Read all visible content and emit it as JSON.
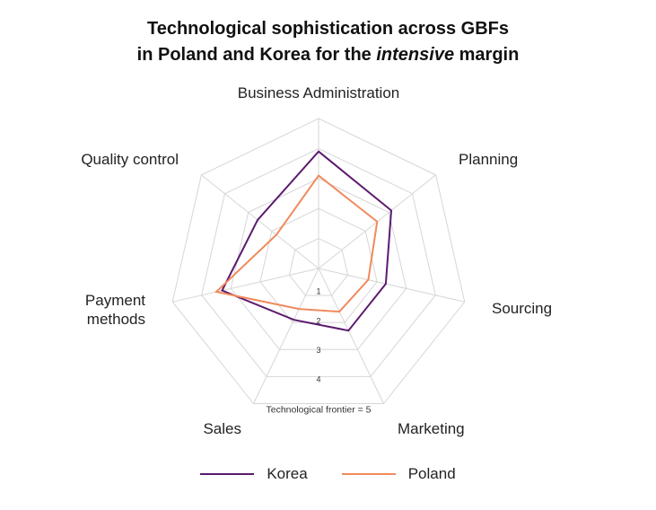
{
  "title": {
    "line1": "Technological sophistication across GBFs",
    "line2_prefix": "in Poland and Korea for the ",
    "line2_emph": "intensive",
    "line2_suffix": " margin"
  },
  "chart_data": {
    "type": "radar",
    "title": "Technological sophistication across GBFs in Poland and Korea for the intensive margin",
    "axes": [
      "Business Administration",
      "Planning",
      "Sourcing",
      "Marketing",
      "Sales",
      "Payment methods",
      "Quality control"
    ],
    "rlim": [
      0,
      5
    ],
    "tick_values": [
      1,
      2,
      3,
      4
    ],
    "tick_labels": [
      "1",
      "2",
      "3",
      "4"
    ],
    "frontier_label": "Technological frontier = 5",
    "series": [
      {
        "name": "Korea",
        "color": "#5c1a6e",
        "values": [
          3.9,
          3.1,
          2.3,
          2.3,
          1.9,
          3.3,
          2.6
        ]
      },
      {
        "name": "Poland",
        "color": "#f08a5d",
        "values": [
          3.1,
          2.5,
          1.7,
          1.6,
          1.5,
          3.5,
          1.8
        ]
      }
    ],
    "legend": [
      "Korea",
      "Poland"
    ],
    "grid": true
  }
}
